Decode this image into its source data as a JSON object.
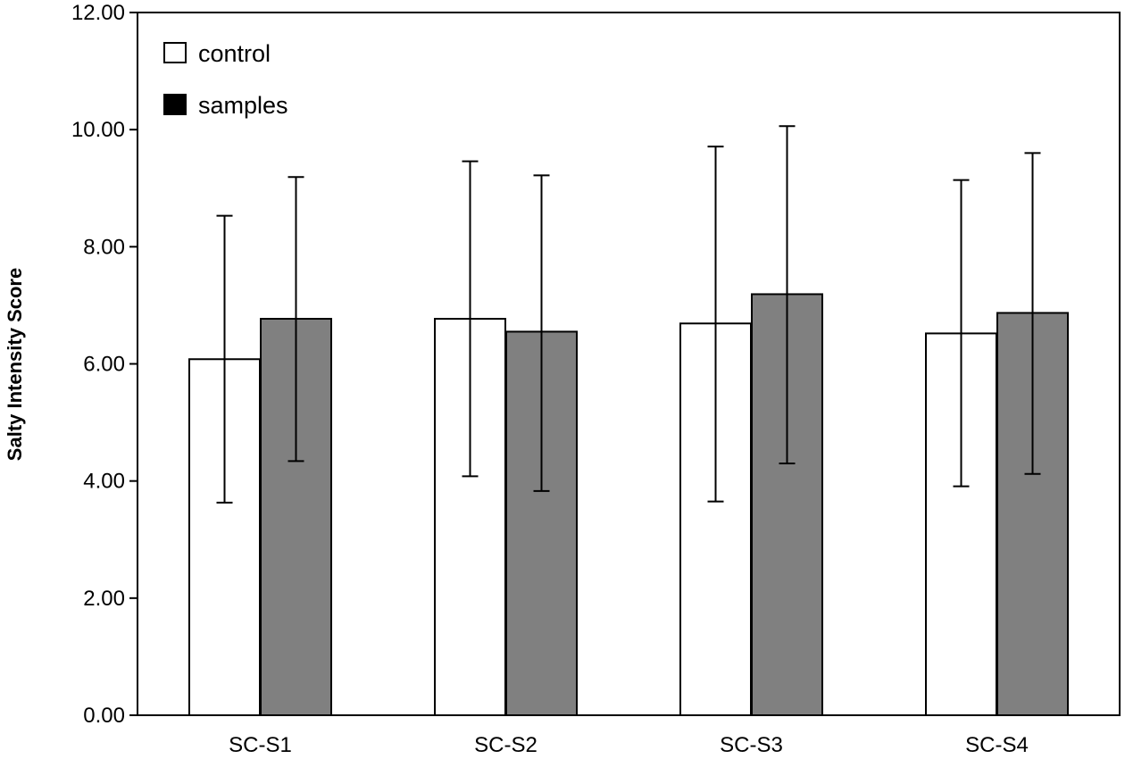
{
  "chart_data": {
    "type": "bar",
    "title": "",
    "xlabel": "",
    "ylabel": "Salty Intensity Score",
    "ylim": [
      0,
      12
    ],
    "ytick_values": [
      0,
      2,
      4,
      6,
      8,
      10,
      12
    ],
    "ytick_labels": [
      "0.00",
      "2.00",
      "4.00",
      "6.00",
      "8.00",
      "10.00",
      "12.00"
    ],
    "categories": [
      "SC-S1",
      "SC-S2",
      "SC-S3",
      "SC-S4"
    ],
    "series": [
      {
        "name": "control",
        "color": "#ffffff",
        "values": [
          6.08,
          6.77,
          6.69,
          6.52
        ],
        "error_low": [
          3.63,
          4.08,
          3.65,
          3.91
        ],
        "error_high": [
          8.53,
          9.46,
          9.71,
          9.14
        ]
      },
      {
        "name": "samples",
        "color": "#808080",
        "values": [
          6.77,
          6.55,
          7.19,
          6.87
        ],
        "error_low": [
          4.34,
          3.83,
          4.3,
          4.12
        ],
        "error_high": [
          9.19,
          9.22,
          10.06,
          9.6
        ]
      }
    ],
    "legend": {
      "position": "top-left",
      "entries": [
        {
          "label": "control",
          "swatch_color": "#ffffff"
        },
        {
          "label": "samples",
          "swatch_color": "#000000"
        }
      ]
    },
    "grid": false
  }
}
